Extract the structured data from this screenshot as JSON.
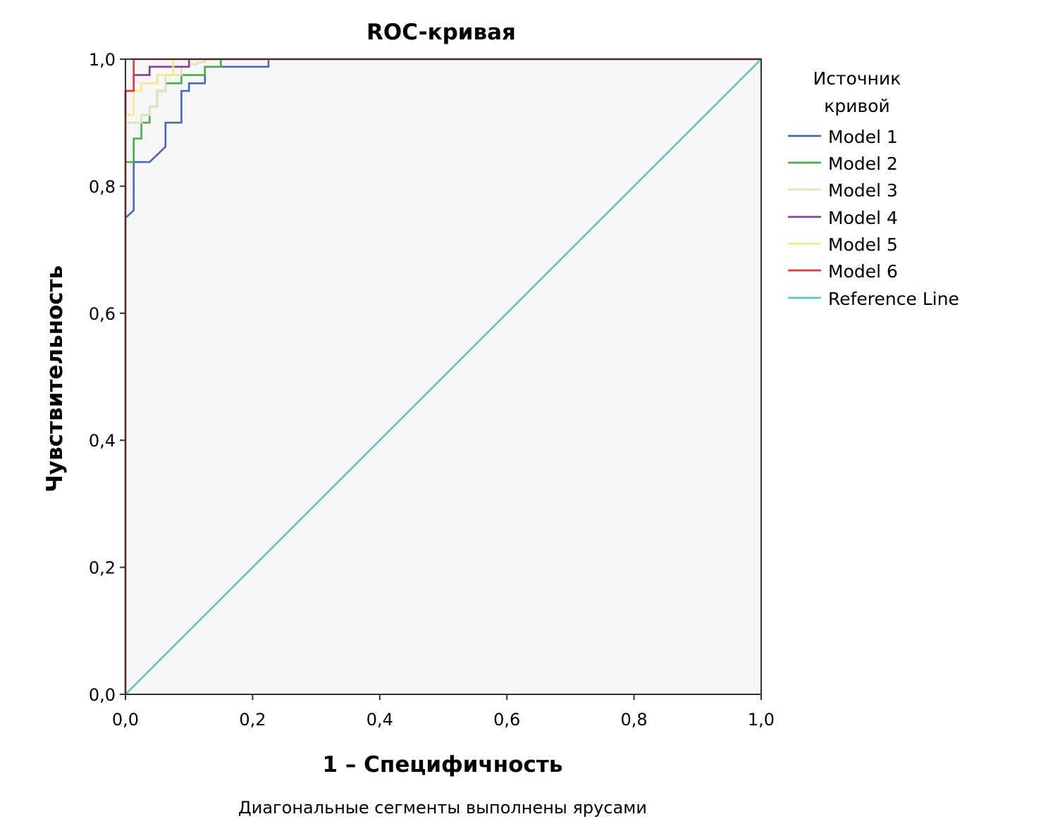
{
  "chart_data": {
    "type": "line",
    "title": "ROC-кривая",
    "xlabel": "1 – Специфичность",
    "ylabel": "Чувствительность",
    "footnote": "Диагональные сегменты выполнены ярусами",
    "xlim": [
      0,
      1
    ],
    "ylim": [
      0,
      1
    ],
    "x_ticks": [
      "0,0",
      "0,2",
      "0,4",
      "0,6",
      "0,8",
      "1,0"
    ],
    "y_ticks": [
      "0,0",
      "0,2",
      "0,4",
      "0,6",
      "0,8",
      "1,0"
    ],
    "x_tick_values": [
      0,
      0.2,
      0.4,
      0.6,
      0.8,
      1.0
    ],
    "y_tick_values": [
      0,
      0.2,
      0.4,
      0.6,
      0.8,
      1.0
    ],
    "grid": false,
    "plot_background": "#f6f6f6",
    "legend": {
      "title": [
        "Источник",
        "кривой"
      ],
      "placement": "right"
    },
    "series": [
      {
        "name": "Model 1",
        "color": "#4a67b8",
        "x": [
          0,
          0,
          0.013,
          0.013,
          0.038,
          0.063,
          0.063,
          0.088,
          0.088,
          0.1,
          0.1,
          0.125,
          0.125,
          0.225,
          0.225,
          1.0
        ],
        "y": [
          0,
          0.75,
          0.762,
          0.838,
          0.838,
          0.862,
          0.9,
          0.9,
          0.95,
          0.95,
          0.962,
          0.962,
          0.988,
          0.988,
          1.0,
          1.0
        ]
      },
      {
        "name": "Model 2",
        "color": "#4aab4a",
        "x": [
          0,
          0,
          0.013,
          0.013,
          0.025,
          0.025,
          0.038,
          0.038,
          0.05,
          0.05,
          0.063,
          0.063,
          0.088,
          0.088,
          0.125,
          0.125,
          0.15,
          0.15,
          1.0
        ],
        "y": [
          0,
          0.838,
          0.838,
          0.875,
          0.875,
          0.9,
          0.9,
          0.925,
          0.925,
          0.95,
          0.95,
          0.962,
          0.962,
          0.975,
          0.975,
          0.988,
          0.988,
          1.0,
          1.0
        ]
      },
      {
        "name": "Model 3",
        "color": "#e6e0b8",
        "x": [
          0,
          0,
          0.025,
          0.025,
          0.038,
          0.038,
          0.05,
          0.05,
          0.063,
          0.063,
          0.088,
          0.088,
          0.1,
          0.1,
          0.113,
          0.113,
          0.125,
          0.125,
          1.0
        ],
        "y": [
          0,
          0.9,
          0.9,
          0.912,
          0.912,
          0.925,
          0.925,
          0.95,
          0.95,
          0.975,
          0.975,
          0.988,
          0.988,
          0.992,
          0.992,
          0.995,
          0.995,
          1.0,
          1.0
        ]
      },
      {
        "name": "Model 4",
        "color": "#8a3a9a",
        "x": [
          0,
          0,
          0.013,
          0.013,
          0.038,
          0.038,
          0.05,
          0.05,
          0.1,
          0.1,
          1.0
        ],
        "y": [
          0,
          0.95,
          0.95,
          0.975,
          0.975,
          0.988,
          0.988,
          0.988,
          0.988,
          1.0,
          1.0
        ]
      },
      {
        "name": "Model 5",
        "color": "#f5e88a",
        "x": [
          0,
          0,
          0.013,
          0.013,
          0.025,
          0.025,
          0.05,
          0.05,
          0.075,
          0.075,
          1.0
        ],
        "y": [
          0,
          0.912,
          0.912,
          0.95,
          0.95,
          0.962,
          0.962,
          0.975,
          0.975,
          1.0,
          1.0
        ]
      },
      {
        "name": "Model 6",
        "color": "#e03a3a",
        "x": [
          0,
          0,
          0.013,
          0.013,
          1.0
        ],
        "y": [
          0,
          0.95,
          0.95,
          1.0,
          1.0
        ]
      },
      {
        "name": "Reference Line",
        "color": "#5ec4c8",
        "x": [
          0,
          1
        ],
        "y": [
          0,
          1
        ]
      }
    ]
  }
}
